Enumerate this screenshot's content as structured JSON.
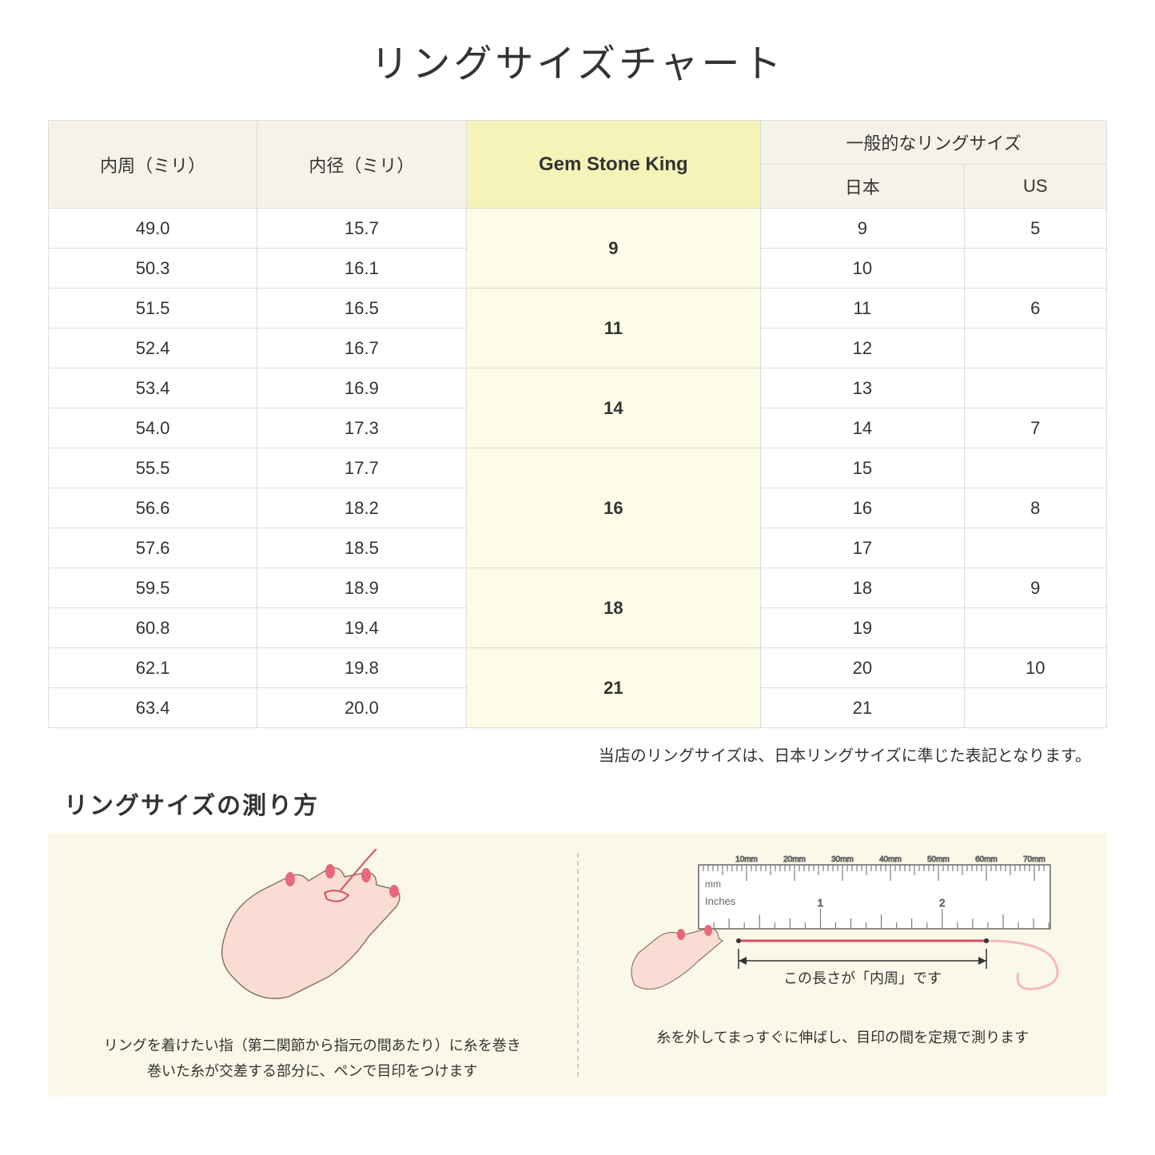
{
  "title": "リングサイズチャート",
  "headers": {
    "col1": "内周（ミリ）",
    "col2": "内径（ミリ）",
    "col3": "Gem Stone King",
    "col4_group": "一般的なリングサイズ",
    "col4a": "日本",
    "col4b": "US"
  },
  "groups": [
    {
      "gsk": "9",
      "rows": [
        {
          "c": "49.0",
          "d": "15.7",
          "jp": "9",
          "us": "5"
        },
        {
          "c": "50.3",
          "d": "16.1",
          "jp": "10",
          "us": ""
        }
      ]
    },
    {
      "gsk": "11",
      "rows": [
        {
          "c": "51.5",
          "d": "16.5",
          "jp": "11",
          "us": "6"
        },
        {
          "c": "52.4",
          "d": "16.7",
          "jp": "12",
          "us": ""
        }
      ]
    },
    {
      "gsk": "14",
      "rows": [
        {
          "c": "53.4",
          "d": "16.9",
          "jp": "13",
          "us": ""
        },
        {
          "c": "54.0",
          "d": "17.3",
          "jp": "14",
          "us": "7"
        }
      ]
    },
    {
      "gsk": "16",
      "rows": [
        {
          "c": "55.5",
          "d": "17.7",
          "jp": "15",
          "us": ""
        },
        {
          "c": "56.6",
          "d": "18.2",
          "jp": "16",
          "us": "8"
        },
        {
          "c": "57.6",
          "d": "18.5",
          "jp": "17",
          "us": ""
        }
      ]
    },
    {
      "gsk": "18",
      "rows": [
        {
          "c": "59.5",
          "d": "18.9",
          "jp": "18",
          "us": "9"
        },
        {
          "c": "60.8",
          "d": "19.4",
          "jp": "19",
          "us": ""
        }
      ]
    },
    {
      "gsk": "21",
      "rows": [
        {
          "c": "62.1",
          "d": "19.8",
          "jp": "20",
          "us": "10"
        },
        {
          "c": "63.4",
          "d": "20.0",
          "jp": "21",
          "us": ""
        }
      ]
    }
  ],
  "note": "当店のリングサイズは、日本リングサイズに準じた表記となります。",
  "measure_title": "リングサイズの測り方",
  "caption_left_1": "リングを着けたい指（第二関節から指元の間あたり）に糸を巻き",
  "caption_left_2": "巻いた糸が交差する部分に、ペンで目印をつけます",
  "caption_right_label": "この長さが「内周」です",
  "caption_right": "糸を外してまっすぐに伸ばし、目印の間を定規で測ります",
  "ruler": {
    "mm_label": "mm",
    "in_label": "Inches",
    "mm_ticks": [
      "10mm",
      "20mm",
      "30mm",
      "40mm",
      "50mm",
      "60mm",
      "70mm"
    ],
    "in_ticks": [
      "1",
      "2"
    ]
  },
  "colors": {
    "header_bg": "#f5f2e8",
    "highlight_bg": "#f5f3b8",
    "highlight_cell": "#fdfce8",
    "border": "#dddddd",
    "measure_bg": "#faf8e8",
    "hand_fill": "#f9dcd4",
    "hand_stroke": "#8b7560",
    "nail": "#e8687a",
    "thread": "#d94f5f"
  }
}
